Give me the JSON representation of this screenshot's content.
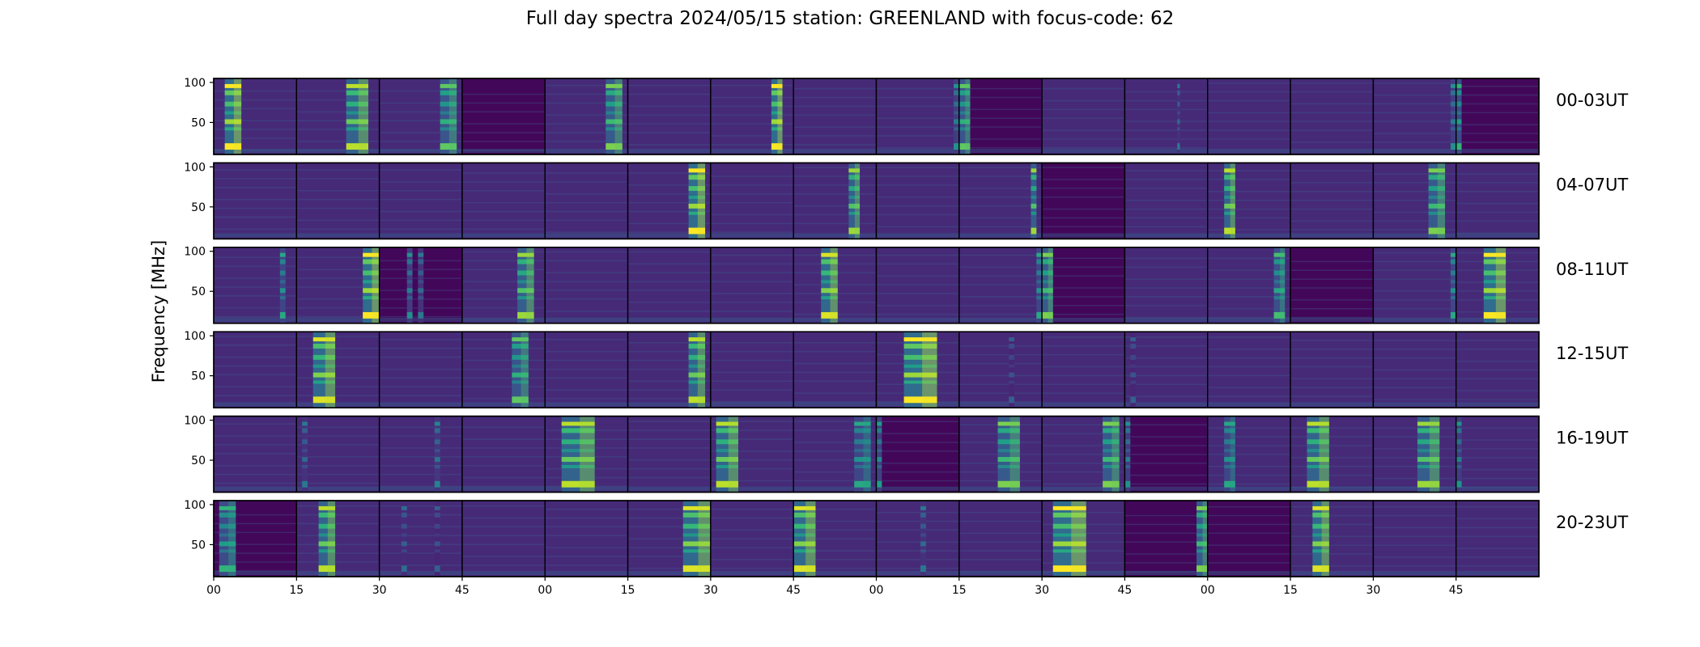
{
  "chart_data": {
    "type": "heatmap",
    "title": "Full day spectra 2024/05/15 station: GREENLAND with focus-code: 62",
    "ylabel": "Frequency [MHz]",
    "xlabel": "",
    "ylim": [
      10,
      105
    ],
    "yticks": [
      50,
      100
    ],
    "xticks": [
      "00",
      "15",
      "30",
      "45",
      "00",
      "15",
      "30",
      "45",
      "00",
      "15",
      "30",
      "45",
      "00",
      "15",
      "30",
      "45"
    ],
    "colormap": "viridis",
    "panels_per_row": 16,
    "panel_minutes": 15,
    "rows": [
      {
        "label": "00-03UT",
        "panels": [
          {
            "bursts": [
              [
                2,
                5,
                1.0
              ]
            ]
          },
          {
            "bursts": [
              [
                9,
                13,
                0.9
              ]
            ]
          },
          {
            "bursts": [
              [
                11,
                14,
                0.75
              ]
            ]
          },
          {
            "bursts": [],
            "dark": true
          },
          {
            "bursts": [
              [
                11,
                14,
                0.8
              ]
            ]
          },
          {
            "bursts": []
          },
          {
            "bursts": [
              [
                11,
                13,
                1.0
              ]
            ]
          },
          {
            "bursts": []
          },
          {
            "bursts": [
              [
                14,
                15,
                0.5
              ]
            ]
          },
          {
            "bursts": [
              [
                0,
                2,
                0.75
              ]
            ],
            "dark": true
          },
          {
            "bursts": []
          },
          {
            "bursts": [
              [
                9.5,
                10,
                0.4
              ]
            ]
          },
          {
            "bursts": []
          },
          {
            "bursts": []
          },
          {
            "bursts": [
              [
                14,
                15,
                0.5
              ]
            ]
          },
          {
            "bursts": [
              [
                0,
                1,
                0.65
              ]
            ],
            "dark": true
          }
        ]
      },
      {
        "label": "04-07UT",
        "panels": [
          {
            "bursts": []
          },
          {
            "bursts": []
          },
          {
            "bursts": []
          },
          {
            "bursts": []
          },
          {
            "bursts": []
          },
          {
            "bursts": [
              [
                11,
                14,
                1.0
              ]
            ]
          },
          {
            "bursts": []
          },
          {
            "bursts": [
              [
                10,
                12,
                0.85
              ]
            ]
          },
          {
            "bursts": []
          },
          {
            "bursts": [
              [
                13,
                14,
                0.85
              ]
            ]
          },
          {
            "bursts": [],
            "dark": true
          },
          {
            "bursts": []
          },
          {
            "bursts": [
              [
                3,
                5,
                0.9
              ]
            ]
          },
          {
            "bursts": []
          },
          {
            "bursts": [
              [
                10,
                13,
                0.8
              ]
            ]
          },
          {
            "bursts": []
          }
        ]
      },
      {
        "label": "08-11UT",
        "panels": [
          {
            "bursts": [
              [
                12,
                13,
                0.6
              ]
            ]
          },
          {
            "bursts": [
              [
                12,
                15,
                1.0
              ]
            ]
          },
          {
            "bursts": [
              [
                5,
                6,
                0.5
              ],
              [
                7,
                8,
                0.4
              ]
            ],
            "dark": true
          },
          {
            "bursts": [
              [
                10,
                13,
                0.85
              ]
            ]
          },
          {
            "bursts": []
          },
          {
            "bursts": []
          },
          {
            "bursts": []
          },
          {
            "bursts": [
              [
                5,
                8,
                0.95
              ]
            ]
          },
          {
            "bursts": []
          },
          {
            "bursts": [
              [
                14,
                15,
                0.6
              ]
            ]
          },
          {
            "bursts": [
              [
                0,
                2,
                0.8
              ]
            ],
            "dark": true
          },
          {
            "bursts": []
          },
          {
            "bursts": [
              [
                12,
                14,
                0.7
              ]
            ]
          },
          {
            "bursts": [],
            "dark": true
          },
          {
            "bursts": [
              [
                14,
                15,
                0.6
              ]
            ]
          },
          {
            "bursts": [
              [
                5,
                9,
                1.0
              ]
            ]
          }
        ]
      },
      {
        "label": "12-15UT",
        "panels": [
          {
            "bursts": []
          },
          {
            "bursts": [
              [
                3,
                7,
                0.95
              ]
            ]
          },
          {
            "bursts": []
          },
          {
            "bursts": [
              [
                9,
                12,
                0.75
              ]
            ]
          },
          {
            "bursts": []
          },
          {
            "bursts": [
              [
                11,
                14,
                0.9
              ]
            ]
          },
          {
            "bursts": []
          },
          {
            "bursts": []
          },
          {
            "bursts": [
              [
                5,
                11,
                1.0
              ]
            ]
          },
          {
            "bursts": [
              [
                9,
                10,
                0.3
              ]
            ]
          },
          {
            "bursts": []
          },
          {
            "bursts": [
              [
                1,
                2,
                0.3
              ]
            ]
          },
          {
            "bursts": []
          },
          {
            "bursts": []
          },
          {
            "bursts": []
          },
          {
            "bursts": []
          }
        ]
      },
      {
        "label": "16-19UT",
        "panels": [
          {
            "bursts": []
          },
          {
            "bursts": [
              [
                1,
                2,
                0.4
              ]
            ]
          },
          {
            "bursts": [
              [
                10,
                11,
                0.45
              ]
            ]
          },
          {
            "bursts": []
          },
          {
            "bursts": [
              [
                3,
                9,
                0.9
              ]
            ]
          },
          {
            "bursts": []
          },
          {
            "bursts": [
              [
                1,
                5,
                0.9
              ]
            ]
          },
          {
            "bursts": [
              [
                11,
                14,
                0.6
              ]
            ]
          },
          {
            "bursts": [
              [
                0,
                1,
                0.55
              ]
            ],
            "dark": true
          },
          {
            "bursts": [
              [
                7,
                11,
                0.8
              ]
            ]
          },
          {
            "bursts": [
              [
                11,
                14,
                0.8
              ]
            ]
          },
          {
            "bursts": [
              [
                0,
                1,
                0.5
              ]
            ],
            "dark": true
          },
          {
            "bursts": [
              [
                3,
                5,
                0.6
              ]
            ]
          },
          {
            "bursts": [
              [
                3,
                7,
                0.9
              ]
            ]
          },
          {
            "bursts": [
              [
                8,
                12,
                0.85
              ]
            ]
          },
          {
            "bursts": [
              [
                0,
                1,
                0.5
              ]
            ]
          }
        ]
      },
      {
        "label": "20-23UT",
        "panels": [
          {
            "bursts": [
              [
                1,
                4,
                0.65
              ]
            ],
            "dark": true
          },
          {
            "bursts": [
              [
                4,
                7,
                0.9
              ]
            ]
          },
          {
            "bursts": [
              [
                4,
                5,
                0.35
              ],
              [
                10,
                11,
                0.3
              ]
            ]
          },
          {
            "bursts": []
          },
          {
            "bursts": []
          },
          {
            "bursts": [
              [
                10,
                15,
                0.95
              ]
            ]
          },
          {
            "bursts": []
          },
          {
            "bursts": [
              [
                0,
                4,
                0.95
              ]
            ]
          },
          {
            "bursts": [
              [
                8,
                9,
                0.4
              ]
            ]
          },
          {
            "bursts": []
          },
          {
            "bursts": [
              [
                2,
                8,
                1.0
              ]
            ]
          },
          {
            "bursts": [
              [
                13,
                15,
                0.8
              ]
            ],
            "dark": true
          },
          {
            "bursts": [],
            "dark": true
          },
          {
            "bursts": [
              [
                4,
                7,
                0.95
              ]
            ]
          },
          {
            "bursts": []
          },
          {
            "bursts": []
          }
        ]
      }
    ]
  }
}
